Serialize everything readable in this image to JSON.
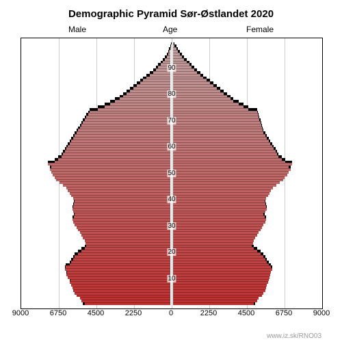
{
  "title": "Demographic Pyramid Sør-Østlandet 2020",
  "title_fontsize": 15,
  "labels": {
    "male": "Male",
    "age": "Age",
    "female": "Female",
    "label_fontsize": 12
  },
  "watermark": "www.iz.sk/RNO03",
  "watermark_fontsize": 10,
  "watermark_color": "#999999",
  "chart": {
    "type": "population-pyramid",
    "background_color": "#ffffff",
    "border_color": "#000000",
    "gridline_color": "#cccccc",
    "overflow_color": "#000000",
    "x_max": 9000,
    "x_ticks": [
      9000,
      6750,
      4500,
      2250,
      0,
      2250,
      4500,
      6750,
      9000
    ],
    "x_tick_fontsize": 11,
    "age_max": 100,
    "age_label_step": 10,
    "age_labels": [
      10,
      20,
      30,
      40,
      50,
      60,
      70,
      80,
      90
    ],
    "age_label_fontsize": 10,
    "color_top": "#c0a0a0",
    "color_bottom": "#c03030",
    "bars": [
      {
        "age": 0,
        "male": 5200,
        "male_prev": 5300,
        "female": 4900,
        "female_prev": 5000
      },
      {
        "age": 1,
        "male": 5400,
        "male_prev": 5200,
        "female": 5100,
        "female_prev": 4900
      },
      {
        "age": 2,
        "male": 5500,
        "male_prev": 5400,
        "female": 5200,
        "female_prev": 5100
      },
      {
        "age": 3,
        "male": 5700,
        "male_prev": 5500,
        "female": 5400,
        "female_prev": 5200
      },
      {
        "age": 4,
        "male": 5800,
        "male_prev": 5700,
        "female": 5500,
        "female_prev": 5400
      },
      {
        "age": 5,
        "male": 5900,
        "male_prev": 5800,
        "female": 5600,
        "female_prev": 5500
      },
      {
        "age": 6,
        "male": 5950,
        "male_prev": 5900,
        "female": 5650,
        "female_prev": 5600
      },
      {
        "age": 7,
        "male": 6000,
        "male_prev": 5950,
        "female": 5700,
        "female_prev": 5650
      },
      {
        "age": 8,
        "male": 6100,
        "male_prev": 6000,
        "female": 5750,
        "female_prev": 5700
      },
      {
        "age": 9,
        "male": 6050,
        "male_prev": 6100,
        "female": 5800,
        "female_prev": 5750
      },
      {
        "age": 10,
        "male": 6200,
        "male_prev": 6050,
        "female": 5850,
        "female_prev": 5800
      },
      {
        "age": 11,
        "male": 6300,
        "male_prev": 6200,
        "female": 5900,
        "female_prev": 5850
      },
      {
        "age": 12,
        "male": 6250,
        "male_prev": 6300,
        "female": 5950,
        "female_prev": 5900
      },
      {
        "age": 13,
        "male": 6400,
        "male_prev": 6250,
        "female": 6000,
        "female_prev": 5950
      },
      {
        "age": 14,
        "male": 6350,
        "male_prev": 6400,
        "female": 5950,
        "female_prev": 6000
      },
      {
        "age": 15,
        "male": 6100,
        "male_prev": 6350,
        "female": 5800,
        "female_prev": 5950
      },
      {
        "age": 16,
        "male": 6000,
        "male_prev": 6100,
        "female": 5700,
        "female_prev": 5800
      },
      {
        "age": 17,
        "male": 5900,
        "male_prev": 6000,
        "female": 5600,
        "female_prev": 5700
      },
      {
        "age": 18,
        "male": 5800,
        "male_prev": 5900,
        "female": 5500,
        "female_prev": 5600
      },
      {
        "age": 19,
        "male": 5600,
        "male_prev": 5800,
        "female": 5300,
        "female_prev": 5500
      },
      {
        "age": 20,
        "male": 5400,
        "male_prev": 5600,
        "female": 5100,
        "female_prev": 5300
      },
      {
        "age": 21,
        "male": 5200,
        "male_prev": 5400,
        "female": 4900,
        "female_prev": 5100
      },
      {
        "age": 22,
        "male": 5100,
        "male_prev": 5200,
        "female": 4800,
        "female_prev": 4900
      },
      {
        "age": 23,
        "male": 5150,
        "male_prev": 5100,
        "female": 4850,
        "female_prev": 4800
      },
      {
        "age": 24,
        "male": 5200,
        "male_prev": 5150,
        "female": 4900,
        "female_prev": 4850
      },
      {
        "age": 25,
        "male": 5300,
        "male_prev": 5200,
        "female": 5000,
        "female_prev": 4900
      },
      {
        "age": 26,
        "male": 5400,
        "male_prev": 5300,
        "female": 5100,
        "female_prev": 5000
      },
      {
        "age": 27,
        "male": 5500,
        "male_prev": 5400,
        "female": 5200,
        "female_prev": 5100
      },
      {
        "age": 28,
        "male": 5600,
        "male_prev": 5500,
        "female": 5300,
        "female_prev": 5200
      },
      {
        "age": 29,
        "male": 5700,
        "male_prev": 5600,
        "female": 5400,
        "female_prev": 5300
      },
      {
        "age": 30,
        "male": 5800,
        "male_prev": 5700,
        "female": 5500,
        "female_prev": 5400
      },
      {
        "age": 31,
        "male": 5900,
        "male_prev": 5800,
        "female": 5600,
        "female_prev": 5500
      },
      {
        "age": 32,
        "male": 5950,
        "male_prev": 5900,
        "female": 5650,
        "female_prev": 5600
      },
      {
        "age": 33,
        "male": 5850,
        "male_prev": 5950,
        "female": 5550,
        "female_prev": 5650
      },
      {
        "age": 34,
        "male": 5800,
        "male_prev": 5850,
        "female": 5500,
        "female_prev": 5550
      },
      {
        "age": 35,
        "male": 5900,
        "male_prev": 5800,
        "female": 5600,
        "female_prev": 5500
      },
      {
        "age": 36,
        "male": 5950,
        "male_prev": 5900,
        "female": 5700,
        "female_prev": 5600
      },
      {
        "age": 37,
        "male": 5900,
        "male_prev": 5950,
        "female": 5650,
        "female_prev": 5700
      },
      {
        "age": 38,
        "male": 5850,
        "male_prev": 5900,
        "female": 5600,
        "female_prev": 5650
      },
      {
        "age": 39,
        "male": 5800,
        "male_prev": 5850,
        "female": 5550,
        "female_prev": 5600
      },
      {
        "age": 40,
        "male": 5900,
        "male_prev": 5800,
        "female": 5650,
        "female_prev": 5550
      },
      {
        "age": 41,
        "male": 6000,
        "male_prev": 5900,
        "female": 5750,
        "female_prev": 5650
      },
      {
        "age": 42,
        "male": 6100,
        "male_prev": 6000,
        "female": 5850,
        "female_prev": 5750
      },
      {
        "age": 43,
        "male": 6200,
        "male_prev": 6100,
        "female": 5950,
        "female_prev": 5850
      },
      {
        "age": 44,
        "male": 6300,
        "male_prev": 6200,
        "female": 6050,
        "female_prev": 5950
      },
      {
        "age": 45,
        "male": 6500,
        "male_prev": 6300,
        "female": 6250,
        "female_prev": 6050
      },
      {
        "age": 46,
        "male": 6700,
        "male_prev": 6500,
        "female": 6450,
        "female_prev": 6250
      },
      {
        "age": 47,
        "male": 6900,
        "male_prev": 6700,
        "female": 6650,
        "female_prev": 6450
      },
      {
        "age": 48,
        "male": 7000,
        "male_prev": 6900,
        "female": 6750,
        "female_prev": 6650
      },
      {
        "age": 49,
        "male": 7100,
        "male_prev": 7000,
        "female": 6900,
        "female_prev": 6750
      },
      {
        "age": 50,
        "male": 7200,
        "male_prev": 7100,
        "female": 7000,
        "female_prev": 6900
      },
      {
        "age": 51,
        "male": 7300,
        "male_prev": 7200,
        "female": 7100,
        "female_prev": 7000
      },
      {
        "age": 52,
        "male": 7200,
        "male_prev": 7300,
        "female": 7000,
        "female_prev": 7100
      },
      {
        "age": 53,
        "male": 7400,
        "male_prev": 7200,
        "female": 7200,
        "female_prev": 7000
      },
      {
        "age": 54,
        "male": 7000,
        "male_prev": 7400,
        "female": 6800,
        "female_prev": 7200
      },
      {
        "age": 55,
        "male": 6800,
        "male_prev": 7000,
        "female": 6600,
        "female_prev": 6800
      },
      {
        "age": 56,
        "male": 6600,
        "male_prev": 6800,
        "female": 6400,
        "female_prev": 6600
      },
      {
        "age": 57,
        "male": 6500,
        "male_prev": 6600,
        "female": 6300,
        "female_prev": 6400
      },
      {
        "age": 58,
        "male": 6400,
        "male_prev": 6500,
        "female": 6200,
        "female_prev": 6300
      },
      {
        "age": 59,
        "male": 6300,
        "male_prev": 6400,
        "female": 6100,
        "female_prev": 6200
      },
      {
        "age": 60,
        "male": 6200,
        "male_prev": 6300,
        "female": 6000,
        "female_prev": 6100
      },
      {
        "age": 61,
        "male": 6100,
        "male_prev": 6200,
        "female": 5900,
        "female_prev": 6000
      },
      {
        "age": 62,
        "male": 6000,
        "male_prev": 6100,
        "female": 5800,
        "female_prev": 5900
      },
      {
        "age": 63,
        "male": 5900,
        "male_prev": 6000,
        "female": 5700,
        "female_prev": 5800
      },
      {
        "age": 64,
        "male": 5800,
        "male_prev": 5900,
        "female": 5600,
        "female_prev": 5700
      },
      {
        "age": 65,
        "male": 5700,
        "male_prev": 5800,
        "female": 5500,
        "female_prev": 5600
      },
      {
        "age": 66,
        "male": 5600,
        "male_prev": 5700,
        "female": 5450,
        "female_prev": 5500
      },
      {
        "age": 67,
        "male": 5500,
        "male_prev": 5600,
        "female": 5400,
        "female_prev": 5450
      },
      {
        "age": 68,
        "male": 5400,
        "male_prev": 5500,
        "female": 5350,
        "female_prev": 5400
      },
      {
        "age": 69,
        "male": 5300,
        "male_prev": 5400,
        "female": 5300,
        "female_prev": 5350
      },
      {
        "age": 70,
        "male": 5200,
        "male_prev": 5300,
        "female": 5250,
        "female_prev": 5300
      },
      {
        "age": 71,
        "male": 5100,
        "male_prev": 5200,
        "female": 5200,
        "female_prev": 5250
      },
      {
        "age": 72,
        "male": 5000,
        "male_prev": 5100,
        "female": 5150,
        "female_prev": 5200
      },
      {
        "age": 73,
        "male": 4900,
        "male_prev": 5000,
        "female": 5100,
        "female_prev": 5150
      },
      {
        "age": 74,
        "male": 4400,
        "male_prev": 4900,
        "female": 4600,
        "female_prev": 5100
      },
      {
        "age": 75,
        "male": 4000,
        "male_prev": 4400,
        "female": 4300,
        "female_prev": 4600
      },
      {
        "age": 76,
        "male": 3700,
        "male_prev": 4000,
        "female": 4000,
        "female_prev": 4300
      },
      {
        "age": 77,
        "male": 3400,
        "male_prev": 3700,
        "female": 3700,
        "female_prev": 4000
      },
      {
        "age": 78,
        "male": 3100,
        "male_prev": 3400,
        "female": 3500,
        "female_prev": 3700
      },
      {
        "age": 79,
        "male": 2900,
        "male_prev": 3100,
        "female": 3300,
        "female_prev": 3500
      },
      {
        "age": 80,
        "male": 2700,
        "male_prev": 2900,
        "female": 3100,
        "female_prev": 3300
      },
      {
        "age": 81,
        "male": 2500,
        "male_prev": 2700,
        "female": 2900,
        "female_prev": 3100
      },
      {
        "age": 82,
        "male": 2300,
        "male_prev": 2500,
        "female": 2700,
        "female_prev": 2900
      },
      {
        "age": 83,
        "male": 2100,
        "male_prev": 2300,
        "female": 2500,
        "female_prev": 2700
      },
      {
        "age": 84,
        "male": 1900,
        "male_prev": 2100,
        "female": 2300,
        "female_prev": 2500
      },
      {
        "age": 85,
        "male": 1700,
        "male_prev": 1900,
        "female": 2100,
        "female_prev": 2300
      },
      {
        "age": 86,
        "male": 1500,
        "male_prev": 1700,
        "female": 1900,
        "female_prev": 2100
      },
      {
        "age": 87,
        "male": 1300,
        "male_prev": 1500,
        "female": 1700,
        "female_prev": 1900
      },
      {
        "age": 88,
        "male": 1100,
        "male_prev": 1300,
        "female": 1500,
        "female_prev": 1700
      },
      {
        "age": 89,
        "male": 950,
        "male_prev": 1100,
        "female": 1350,
        "female_prev": 1500
      },
      {
        "age": 90,
        "male": 800,
        "male_prev": 950,
        "female": 1200,
        "female_prev": 1350
      },
      {
        "age": 91,
        "male": 650,
        "male_prev": 800,
        "female": 1050,
        "female_prev": 1200
      },
      {
        "age": 92,
        "male": 520,
        "male_prev": 650,
        "female": 900,
        "female_prev": 1050
      },
      {
        "age": 93,
        "male": 400,
        "male_prev": 520,
        "female": 750,
        "female_prev": 900
      },
      {
        "age": 94,
        "male": 300,
        "male_prev": 400,
        "female": 600,
        "female_prev": 750
      },
      {
        "age": 95,
        "male": 220,
        "male_prev": 300,
        "female": 480,
        "female_prev": 600
      },
      {
        "age": 96,
        "male": 150,
        "male_prev": 220,
        "female": 370,
        "female_prev": 480
      },
      {
        "age": 97,
        "male": 100,
        "male_prev": 150,
        "female": 270,
        "female_prev": 370
      },
      {
        "age": 98,
        "male": 60,
        "male_prev": 100,
        "female": 180,
        "female_prev": 270
      },
      {
        "age": 99,
        "male": 30,
        "male_prev": 60,
        "female": 110,
        "female_prev": 180
      }
    ]
  }
}
